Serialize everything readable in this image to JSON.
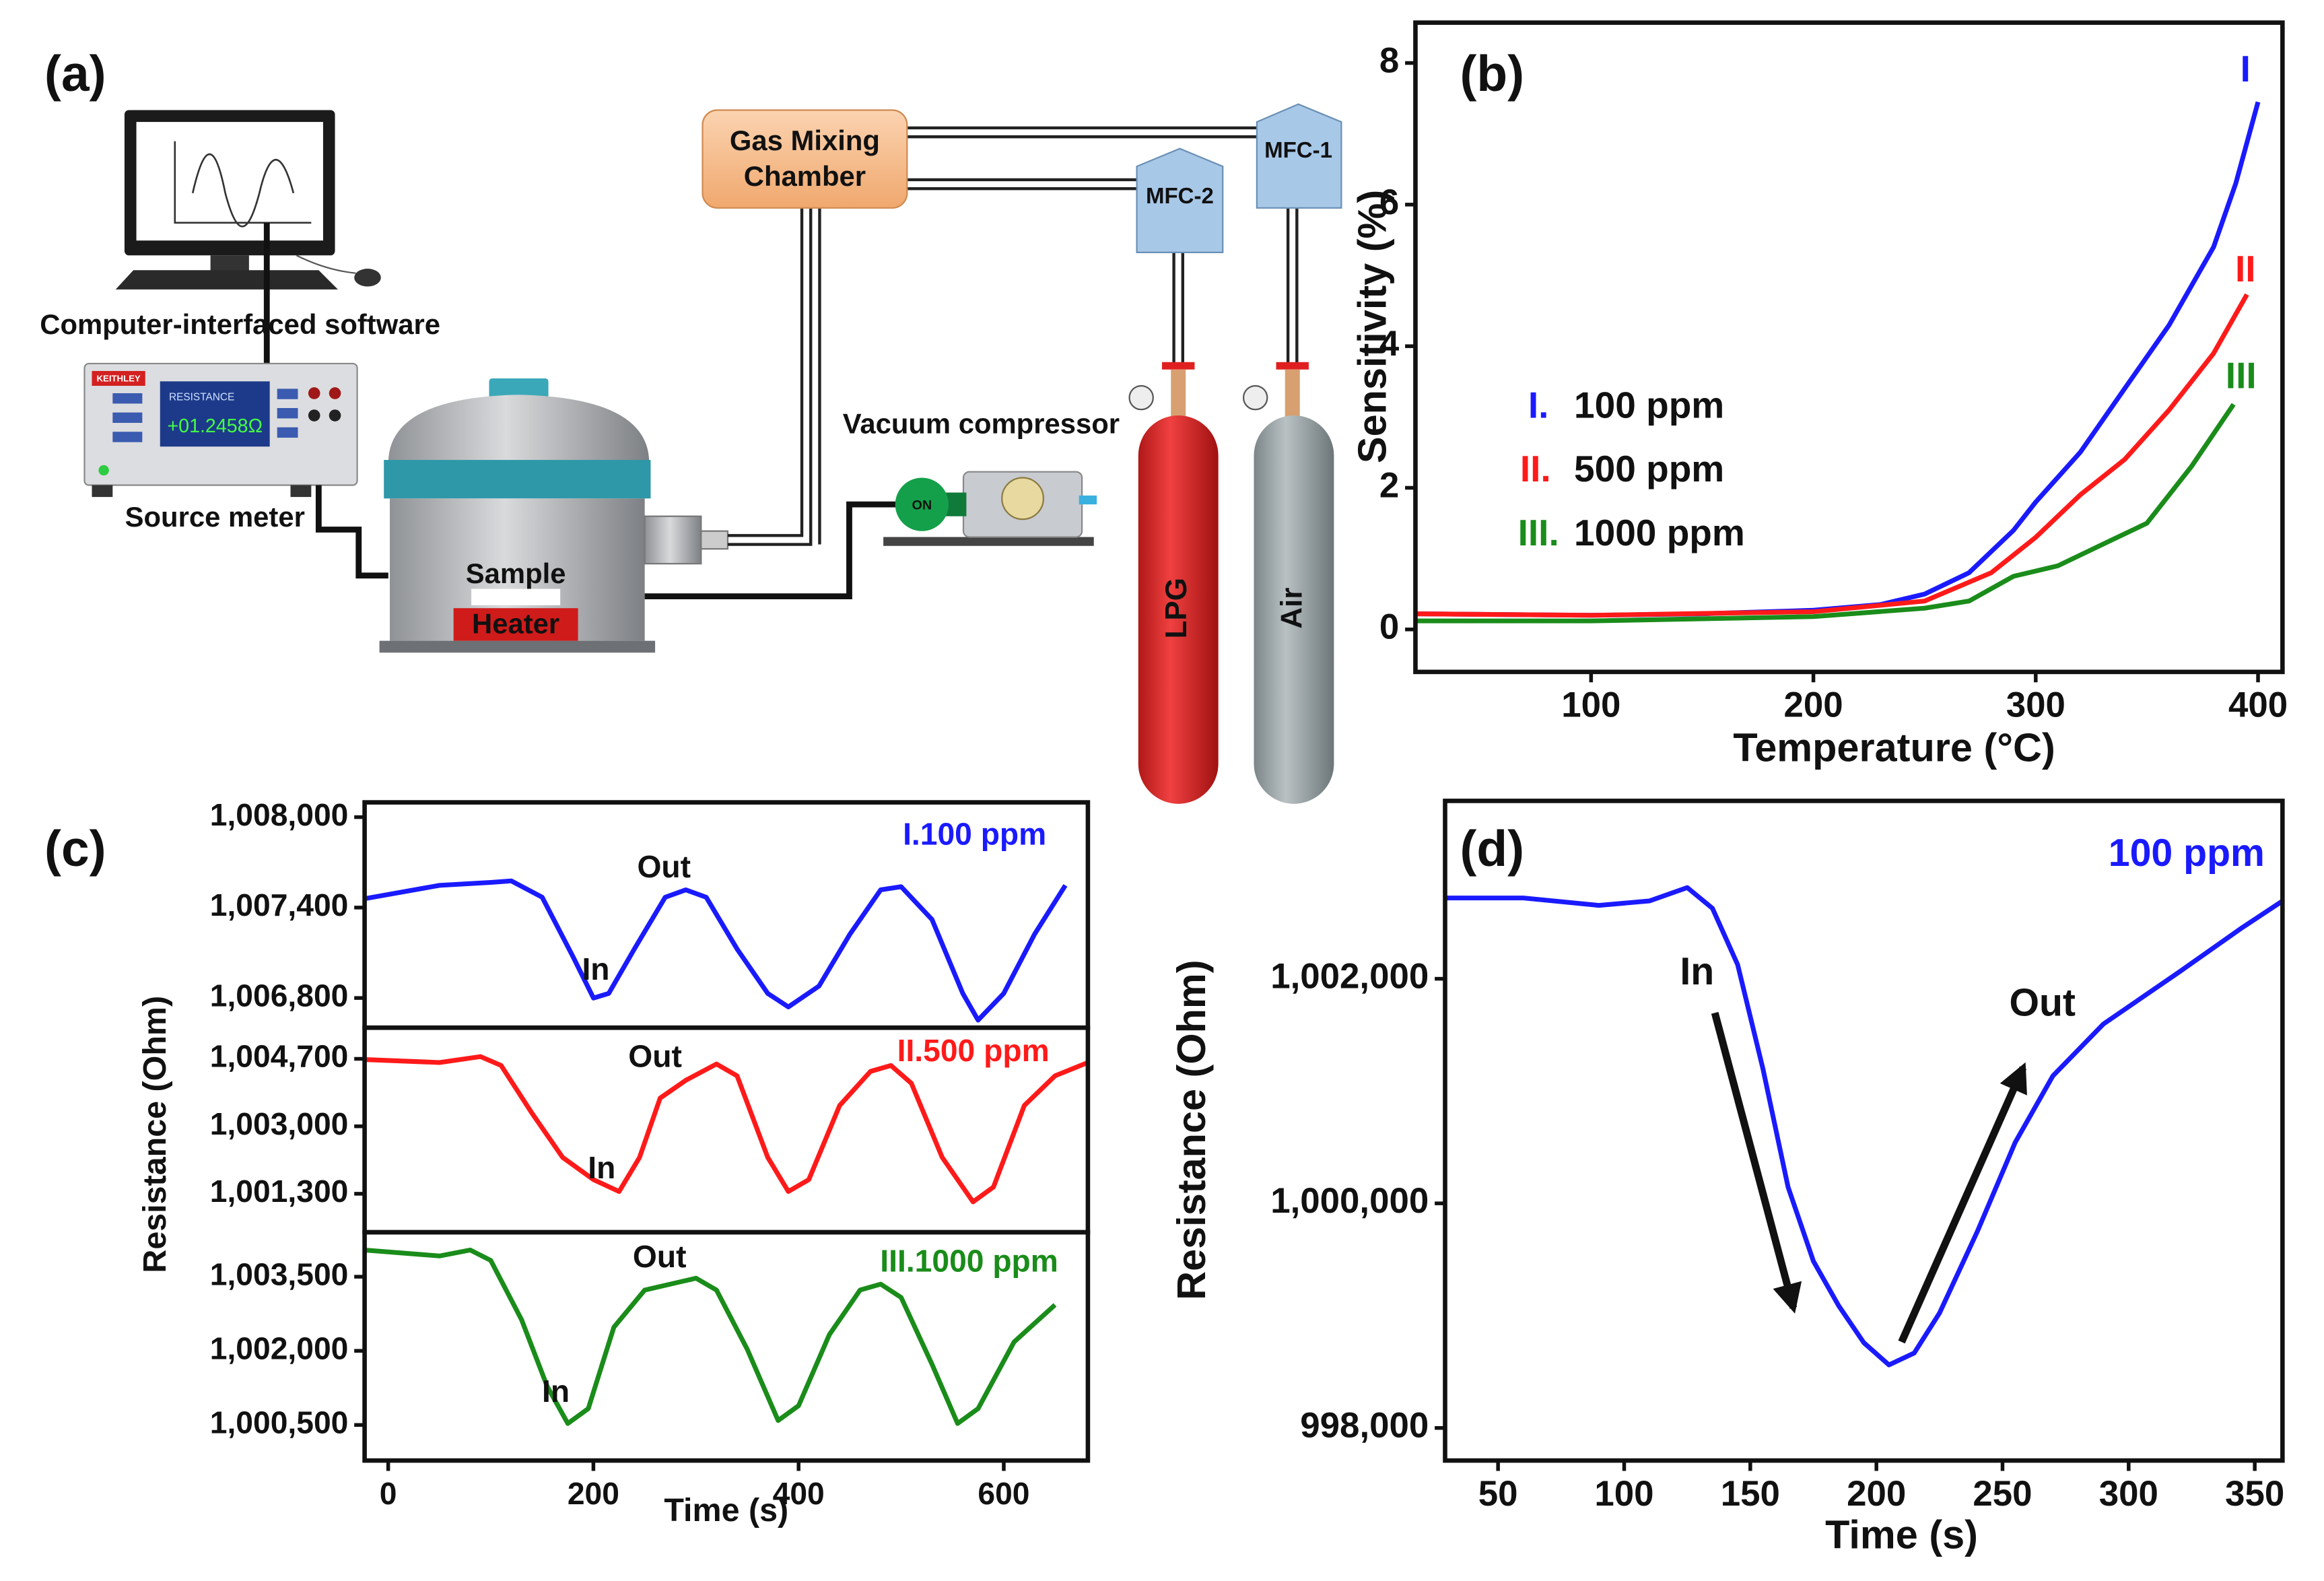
{
  "diagram": {
    "label": "(a)",
    "computer": "Computer-interfaced software",
    "meter_brand": "KEITHLEY",
    "meter_screen_title": "RESISTANCE",
    "meter_reading": "+01.2458Ω",
    "source_meter": "Source meter",
    "sample": "Sample",
    "heater": "Heater",
    "mixing_chamber": [
      "Gas Mixing",
      "Chamber"
    ],
    "mfc1": "MFC-1",
    "mfc2": "MFC-2",
    "vacuum": "Vacuum compressor",
    "pump_switch": "ON",
    "lpg": "LPG",
    "air": "Air"
  },
  "chart_data": [
    {
      "panel": "(b)",
      "type": "line",
      "xlabel": "Temperature (°C)",
      "ylabel": "Sensitivity (%)",
      "xlim": [
        21,
        411
      ],
      "ylim": [
        -0.6,
        8.57
      ],
      "xticks": [
        100,
        200,
        300,
        400
      ],
      "yticks": [
        0,
        2,
        4,
        6,
        8
      ],
      "series": [
        {
          "label": "I.",
          "name": "100 ppm",
          "end_label": "I",
          "color": "#1a1aff",
          "x": [
            21,
            100,
            150,
            200,
            230,
            250,
            270,
            290,
            300,
            320,
            340,
            360,
            380,
            390,
            400
          ],
          "values": [
            0.22,
            0.2,
            0.22,
            0.27,
            0.35,
            0.5,
            0.8,
            1.4,
            1.8,
            2.5,
            3.4,
            4.3,
            5.4,
            6.3,
            7.45
          ]
        },
        {
          "label": "II.",
          "name": "500 ppm",
          "end_label": "II",
          "color": "#ff1a1a",
          "x": [
            21,
            100,
            200,
            250,
            280,
            300,
            320,
            340,
            360,
            380,
            395
          ],
          "values": [
            0.22,
            0.2,
            0.25,
            0.4,
            0.8,
            1.3,
            1.9,
            2.4,
            3.1,
            3.9,
            4.73
          ]
        },
        {
          "label": "III.",
          "name": "1000 ppm",
          "end_label": "III",
          "color": "#1a8c1a",
          "x": [
            21,
            100,
            200,
            250,
            270,
            290,
            310,
            330,
            350,
            370,
            389
          ],
          "values": [
            0.12,
            0.12,
            0.18,
            0.3,
            0.4,
            0.75,
            0.9,
            1.2,
            1.5,
            2.3,
            3.18
          ]
        }
      ]
    },
    {
      "panel": "(c)",
      "type": "line",
      "xlabel": "Time (s)",
      "ylabel": "Resistance (Ohm)",
      "xlim": [
        -23,
        682
      ],
      "xticks": [
        0,
        200,
        400,
        600
      ],
      "subplots": [
        {
          "ylim": [
            1006603,
            1008098
          ],
          "yticks": [
            {
              "value": 1006800,
              "label": "1,006,800"
            },
            {
              "value": 1007400,
              "label": "1,007,400"
            },
            {
              "value": 1008000,
              "label": "1,008,000"
            }
          ],
          "annotations": [
            "Out",
            "In"
          ],
          "series": [
            {
              "name": "I.100 ppm",
              "color": "#1a1aff",
              "x": [
                -23,
                50,
                100,
                120,
                150,
                180,
                200,
                215,
                240,
                270,
                290,
                310,
                340,
                370,
                390,
                420,
                450,
                480,
                500,
                530,
                560,
                575,
                600,
                630,
                660
              ],
              "values": [
                1007459,
                1007547,
                1007567,
                1007577,
                1007469,
                1007076,
                1006800,
                1006830,
                1007125,
                1007469,
                1007518,
                1007469,
                1007125,
                1006830,
                1006741,
                1006879,
                1007223,
                1007518,
                1007538,
                1007321,
                1006830,
                1006653,
                1006830,
                1007223,
                1007547
              ]
            }
          ]
        },
        {
          "ylim": [
            1000330,
            1005485
          ],
          "yticks": [
            {
              "value": 1001300,
              "label": "1,001,300"
            },
            {
              "value": 1003000,
              "label": "1,003,000"
            },
            {
              "value": 1004700,
              "label": "1,004,700"
            }
          ],
          "annotations": [
            "Out",
            "In"
          ],
          "series": [
            {
              "name": "II.500 ppm",
              "color": "#ff1a1a",
              "x": [
                -23,
                50,
                90,
                110,
                140,
                170,
                200,
                225,
                245,
                265,
                290,
                320,
                340,
                370,
                390,
                410,
                440,
                470,
                490,
                510,
                540,
                570,
                590,
                620,
                650,
                682
              ],
              "values": [
                1004681,
                1004606,
                1004756,
                1004532,
                1003336,
                1002215,
                1001655,
                1001356,
                1002215,
                1003710,
                1004158,
                1004569,
                1004270,
                1002215,
                1001356,
                1001655,
                1003523,
                1004382,
                1004532,
                1004083,
                1002215,
                1001095,
                1001468,
                1003523,
                1004270,
                1004606
              ]
            }
          ]
        },
        {
          "ylim": [
            999780,
            1004400
          ],
          "yticks": [
            {
              "value": 1000500,
              "label": "1,000,500"
            },
            {
              "value": 1002000,
              "label": "1,002,000"
            },
            {
              "value": 1003500,
              "label": "1,003,500"
            }
          ],
          "annotations": [
            "Out",
            "In"
          ],
          "series": [
            {
              "name": "III.1000 ppm",
              "color": "#1a8c1a",
              "x": [
                -23,
                50,
                80,
                100,
                130,
                155,
                175,
                195,
                220,
                250,
                300,
                320,
                350,
                380,
                400,
                430,
                460,
                480,
                500,
                530,
                555,
                575,
                610,
                650
              ],
              "values": [
                1004040,
                1003920,
                1004040,
                1003830,
                1002630,
                1001280,
                1000530,
                1000830,
                1002480,
                1003230,
                1003470,
                1003230,
                1002030,
                1000590,
                1000890,
                1002330,
                1003230,
                1003350,
                1003080,
                1001730,
                1000530,
                1000830,
                1002180,
                1002930
              ]
            }
          ]
        }
      ]
    },
    {
      "panel": "(d)",
      "type": "line",
      "xlabel": "Time (s)",
      "ylabel": "Resistance (Ohm)",
      "xlim": [
        29,
        361
      ],
      "ylim": [
        997710,
        1003584
      ],
      "xticks": [
        50,
        100,
        150,
        200,
        250,
        300,
        350
      ],
      "yticks": [
        {
          "value": 998000,
          "label": "998,000"
        },
        {
          "value": 1000000,
          "label": "1,000,000"
        },
        {
          "value": 1002000,
          "label": "1,002,000"
        }
      ],
      "annotations": [
        "In",
        "Out"
      ],
      "series": [
        {
          "name": "100 ppm",
          "color": "#1a1aff",
          "x": [
            29,
            60,
            90,
            110,
            125,
            135,
            145,
            155,
            165,
            175,
            185,
            195,
            205,
            215,
            225,
            240,
            255,
            270,
            290,
            320,
            345,
            361
          ],
          "values": [
            1002719,
            1002719,
            1002653,
            1002693,
            1002812,
            1002627,
            1002125,
            1001201,
            1000145,
            999485,
            999089,
            998759,
            998561,
            998667,
            999023,
            999749,
            1000541,
            1001135,
            1001597,
            1002059,
            1002455,
            1002693
          ]
        }
      ]
    }
  ]
}
